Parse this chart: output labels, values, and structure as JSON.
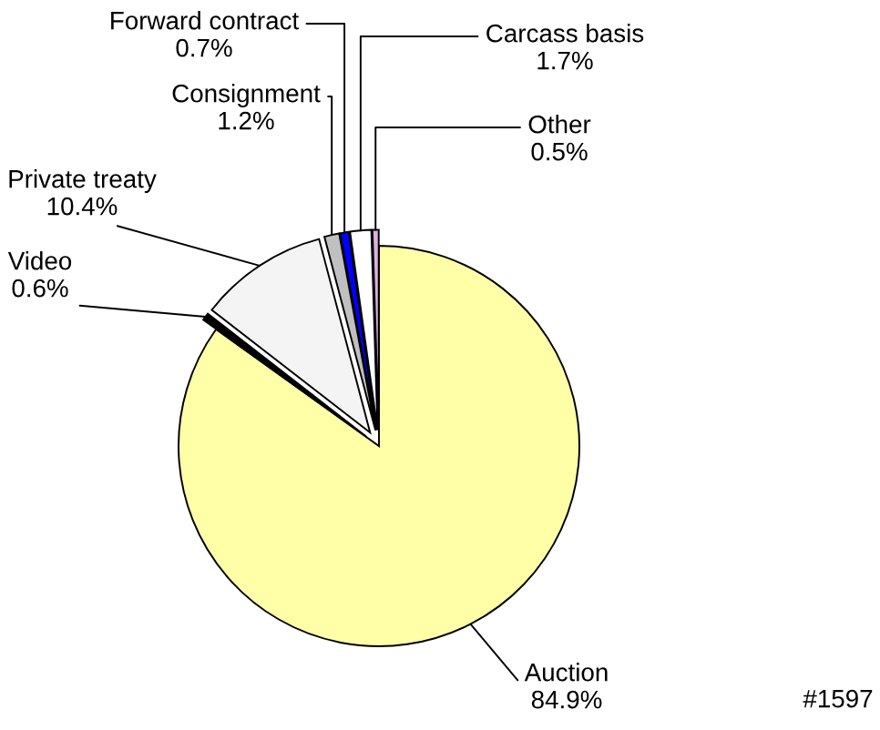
{
  "chart_data": {
    "type": "pie",
    "categories": [
      "Auction",
      "Video",
      "Private treaty",
      "Consignment",
      "Forward contract",
      "Carcass basis",
      "Other"
    ],
    "values": [
      84.9,
      0.6,
      10.4,
      1.2,
      0.7,
      1.7,
      0.5
    ],
    "colors": [
      "#ffffa8",
      "#000000",
      "#f4f4f4",
      "#c0c0c0",
      "#0000ff",
      "#ffffff",
      "#e0b0e0"
    ],
    "value_labels": [
      "84.9%",
      "0.6%",
      "10.4%",
      "1.2%",
      "0.7%",
      "1.7%",
      "0.5%"
    ],
    "annotations": [
      "#1597"
    ]
  }
}
